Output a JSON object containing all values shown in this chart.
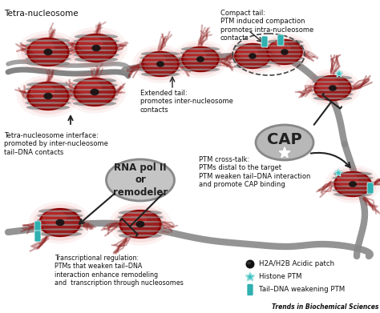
{
  "fig_width": 4.74,
  "fig_height": 3.91,
  "dpi": 100,
  "bg_color": "#ffffff",
  "labels": {
    "tetra_nucleosome": "Tetra-nucleosome",
    "tetra_interface": "Tetra-nucleosome interface:\npromoted by inter-nucleosome\ntail–DNA contacts",
    "compact_tail": "Compact tail:\nPTM induced compaction\npromotes intra-nucleosome\ncontacts",
    "extended_tail": "Extended tail:\npromotes inter-nucleosome\ncontacts",
    "ptm_crosstalk": "PTM cross-talk:\nPTMs distal to the target\nPTM weaken tail–DNA interaction\nand promote CAP binding",
    "cap_label": "CAP",
    "rna_pol": "RNA pol II\nor\nremodeler",
    "transcription": "Transcriptional regulation:\nPTMs that weaken tail–DNA\ninteraction enhance remodeling\nand  transcription through nucleosomes",
    "legend1": "H2A/H2B Acidic patch",
    "legend2": "Histone PTM",
    "legend3": "Tail–DNA weakening PTM",
    "journal": "Trends in Biochemical Sciences"
  },
  "nc": "#9B1C1C",
  "nc2": "#C02020",
  "nc_glow": "#CC3333",
  "dc": "#888888",
  "dc2": "#666666",
  "cap_color": "#b0b0b0",
  "rna_color": "#c0c0c0",
  "tc": "#111111",
  "star_color": "#40C0C0",
  "pill_color": "#30B0B0"
}
